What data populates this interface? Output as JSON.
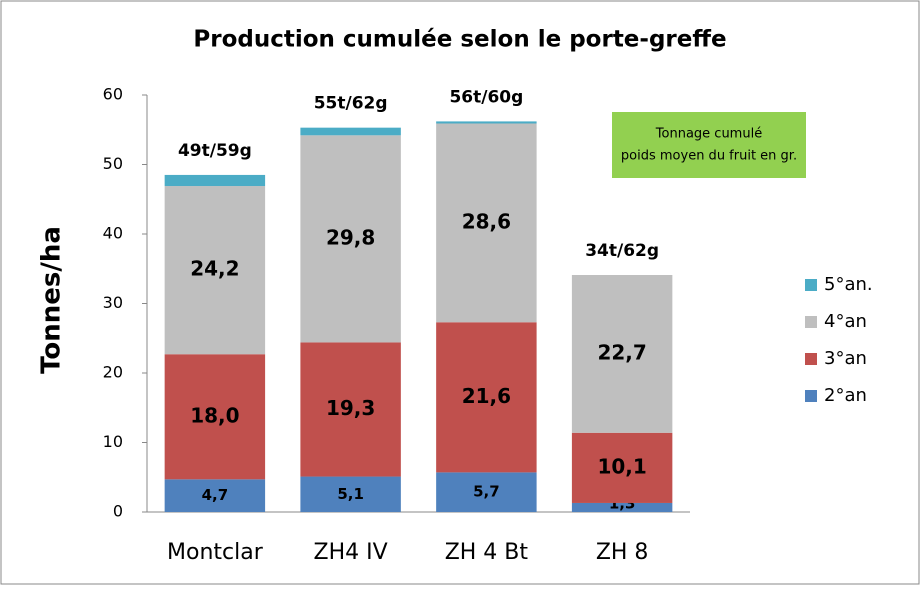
{
  "chart_data": {
    "type": "stacked_bar",
    "title": "Production cumulée selon le porte-greffe",
    "y_label": "Tonnes/ha",
    "categories": [
      "Montclar",
      "ZH4 IV",
      "ZH 4 Bt",
      "ZH 8"
    ],
    "series": [
      {
        "name": "2°an",
        "color": "#4f81bd",
        "values": [
          4.7,
          5.1,
          5.7,
          1.3
        ],
        "value_labels": [
          "4,7",
          "5,1",
          "5,7",
          "1,3"
        ]
      },
      {
        "name": "3°an",
        "color": "#c0504d",
        "values": [
          18.0,
          19.3,
          21.6,
          10.1
        ],
        "value_labels": [
          "18,0",
          "19,3",
          "21,6",
          "10,1"
        ]
      },
      {
        "name": "4°an",
        "color": "#bfbfbf",
        "values": [
          24.2,
          29.8,
          28.6,
          22.7
        ],
        "value_labels": [
          "24,2",
          "29,8",
          "28,6",
          "22,7"
        ]
      },
      {
        "name": "5°an.",
        "color": "#4bacc6",
        "values": [
          1.6,
          1.1,
          0.3,
          null
        ]
      }
    ],
    "total_labels": [
      "49t/59g",
      "55t/62g",
      "56t/60g",
      "34t/62g"
    ],
    "annotation": [
      "Tonnage cumulé",
      "poids moyen du fruit en gr."
    ],
    "annotation_color": "#92d050",
    "ylim": [
      0,
      60
    ],
    "yticks": [
      0,
      10,
      20,
      30,
      40,
      50,
      60
    ],
    "grid": false,
    "legend": "right"
  }
}
